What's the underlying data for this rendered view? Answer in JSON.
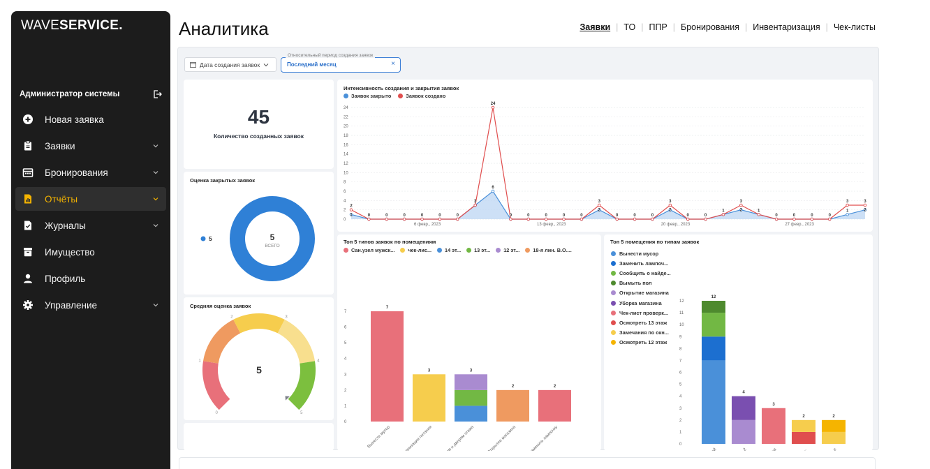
{
  "sidebar": {
    "logo_thin": "WAVE",
    "logo_bold": "SERVICE.",
    "user": "Администратор системы",
    "items": [
      {
        "label": "Новая заявка",
        "icon": "plus-circle-icon",
        "chevron": false
      },
      {
        "label": "Заявки",
        "icon": "clipboard-icon",
        "chevron": true
      },
      {
        "label": "Бронирования",
        "icon": "calendar-icon",
        "chevron": true
      },
      {
        "label": "Отчёты",
        "icon": "report-icon",
        "chevron": true,
        "active": true
      },
      {
        "label": "Журналы",
        "icon": "journal-icon",
        "chevron": true
      },
      {
        "label": "Имущество",
        "icon": "box-icon",
        "chevron": false
      },
      {
        "label": "Профиль",
        "icon": "user-icon",
        "chevron": false
      },
      {
        "label": "Управление",
        "icon": "gear-icon",
        "chevron": true
      }
    ]
  },
  "header": {
    "title": "Аналитика",
    "tabs": [
      "Заявки",
      "ТО",
      "ППР",
      "Бронирования",
      "Инвентаризация",
      "Чек-листы"
    ],
    "active_tab": 0
  },
  "filters": {
    "dates_button": "Дата создания заявок",
    "period_legend": "Относительный период создания заявок",
    "period_value": "Последний месяц",
    "period_clear": "×"
  },
  "kpi": {
    "value": "45",
    "caption": "Количество созданных заявок"
  },
  "colors": {
    "accent": "#f5b400",
    "blue": "#4a90d9",
    "red": "#e04e4e"
  },
  "chart_data": [
    {
      "id": "rating-closed",
      "type": "pie",
      "title": "Оценка закрытых заявок",
      "labels": [
        "5"
      ],
      "values": [
        5
      ],
      "center_value": "5",
      "center_label": "ВСЕГО",
      "colors": [
        "#2f80d6"
      ]
    },
    {
      "id": "avg-rating",
      "type": "gauge",
      "title": "Средняя оценка заявок",
      "value": 5,
      "min": 0,
      "max": 5,
      "ticks": [
        "0",
        "1",
        "2",
        "3",
        "4",
        "5"
      ],
      "segment_colors": [
        "#e8707a",
        "#ef9a60",
        "#f6cd4d",
        "#f8df8e",
        "#7cbf3e"
      ]
    },
    {
      "id": "intensity",
      "type": "line",
      "title": "Интенсивность создания и закрытия заявок",
      "series": [
        {
          "name": "Заявок закрыто",
          "color": "#4a90d9",
          "values": [
            1,
            0,
            0,
            0,
            0,
            0,
            0,
            3,
            6,
            0,
            0,
            0,
            0,
            0,
            2,
            0,
            0,
            0,
            2,
            0,
            0,
            1,
            2,
            1,
            0,
            0,
            0,
            0,
            1,
            2
          ]
        },
        {
          "name": "Заявок создано",
          "color": "#e04e4e",
          "values": [
            2,
            0,
            0,
            0,
            0,
            0,
            0,
            3,
            24,
            0,
            0,
            0,
            0,
            0,
            3,
            0,
            0,
            0,
            3,
            0,
            0,
            1,
            3,
            1,
            0,
            0,
            0,
            0,
            3,
            3
          ]
        }
      ],
      "x_tick_labels": [
        "6 февр., 2023",
        "13 февр., 2023",
        "20 февр., 2023",
        "27 февр., 2023"
      ],
      "x_tick_positions": [
        4.3,
        11.3,
        18.3,
        25.3
      ],
      "y_ticks": [
        0,
        2,
        4,
        6,
        8,
        10,
        12,
        14,
        16,
        18,
        20,
        22,
        24
      ],
      "ylim": [
        0,
        24
      ]
    },
    {
      "id": "top5-types",
      "type": "bar",
      "title": "Топ 5 типов заявок по помещениям",
      "legend": [
        {
          "name": "Сан.узел мужск...",
          "color": "#e8707a"
        },
        {
          "name": "чек-лис...",
          "color": "#f6cd4d"
        },
        {
          "name": "14 эт...",
          "color": "#4a90d9"
        },
        {
          "name": "13 эт...",
          "color": "#72b844"
        },
        {
          "name": "12 эт...",
          "color": "#a98bd0"
        },
        {
          "name": "18-я лин. В.О....",
          "color": "#ef9a60"
        }
      ],
      "categories": [
        "Вынести мусор",
        "...ки качества услуг по организации питания",
        "Замечания по окнам и дверям этажа",
        "Открытие магазина",
        "Заменить лампочку"
      ],
      "stacks": [
        [
          {
            "value": 7,
            "color": "#e8707a"
          }
        ],
        [
          {
            "value": 3,
            "color": "#f6cd4d"
          }
        ],
        [
          {
            "value": 1,
            "color": "#4a90d9"
          },
          {
            "value": 1,
            "color": "#72b844"
          },
          {
            "value": 1,
            "color": "#a98bd0"
          }
        ],
        [
          {
            "value": 2,
            "color": "#ef9a60"
          }
        ],
        [
          {
            "value": 2,
            "color": "#e8707a"
          }
        ]
      ],
      "totals": [
        7,
        3,
        3,
        2,
        2
      ],
      "y_ticks": [
        0,
        1,
        2,
        3,
        4,
        5,
        6,
        7
      ],
      "ylim": [
        0,
        7
      ]
    },
    {
      "id": "top5-rooms",
      "type": "bar",
      "title": "Топ 5 помещения по типам заявок",
      "legend": [
        {
          "name": "Вынести мусор",
          "color": "#4a90d9"
        },
        {
          "name": "Заменить лампоч...",
          "color": "#1c6fd0"
        },
        {
          "name": "Сообщить о найде...",
          "color": "#72b844"
        },
        {
          "name": "Вымыть пол",
          "color": "#4e8a2e"
        },
        {
          "name": "Открытие магазина",
          "color": "#a98bd0"
        },
        {
          "name": "Уборка магазина",
          "color": "#7a4fb0"
        },
        {
          "name": "Чек-лист проверк...",
          "color": "#e8707a"
        },
        {
          "name": "Осмотреть 13 этаж",
          "color": "#e04e4e"
        },
        {
          "name": "Замечания по окн...",
          "color": "#f6cd4d"
        },
        {
          "name": "Осмотреть 12 этаж",
          "color": "#f5b400"
        }
      ],
      "categories": [
        "...ой",
        "...2",
        "...жа",
        "...",
        "...е"
      ],
      "stacks": [
        [
          {
            "value": 7,
            "color": "#4a90d9"
          },
          {
            "value": 2,
            "color": "#1c6fd0"
          },
          {
            "value": 2,
            "color": "#72b844"
          },
          {
            "value": 1,
            "color": "#4e8a2e"
          }
        ],
        [
          {
            "value": 2,
            "color": "#a98bd0"
          },
          {
            "value": 2,
            "color": "#7a4fb0"
          }
        ],
        [
          {
            "value": 3,
            "color": "#e8707a"
          }
        ],
        [
          {
            "value": 1,
            "color": "#e04e4e"
          },
          {
            "value": 1,
            "color": "#f6cd4d"
          }
        ],
        [
          {
            "value": 1,
            "color": "#f6cd4d"
          },
          {
            "value": 1,
            "color": "#f5b400"
          }
        ]
      ],
      "totals": [
        12,
        4,
        3,
        2,
        2
      ],
      "y_ticks": [
        0,
        1,
        2,
        3,
        4,
        5,
        6,
        7,
        8,
        9,
        10,
        11,
        12
      ],
      "ylim": [
        0,
        12
      ]
    }
  ]
}
